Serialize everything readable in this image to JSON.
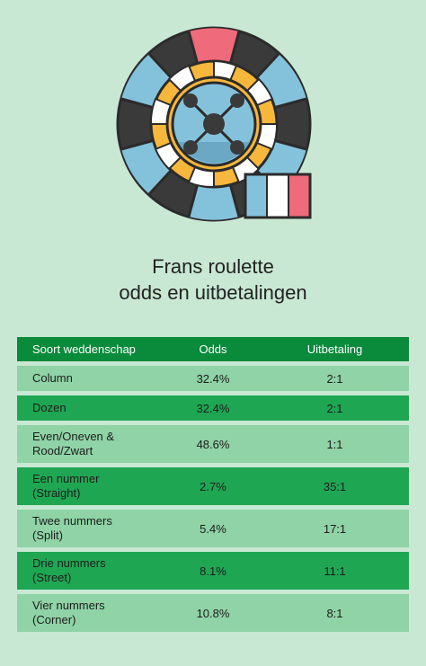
{
  "title": {
    "line1": "Frans roulette",
    "line2": "odds en uitbetalingen"
  },
  "colors": {
    "background": "#c8e8d3",
    "header": "#0a8a3b",
    "row_light": "#8fd3a6",
    "row_dark": "#1fa653",
    "wheel_dark": "#3a3a3a",
    "wheel_blue": "#84c2dc",
    "wheel_red": "#ef6a7a",
    "wheel_yellow": "#f6b73c"
  },
  "icons": {
    "wheel": "roulette-wheel-icon",
    "flag": "french-flag-icon"
  },
  "table": {
    "headers": [
      "Soort weddenschap",
      "Odds",
      "Uitbetaling"
    ],
    "rows": [
      {
        "bet": "Column",
        "bet2": "",
        "odds": "32.4%",
        "payout": "2:1"
      },
      {
        "bet": "Dozen",
        "bet2": "",
        "odds": "32.4%",
        "payout": "2:1"
      },
      {
        "bet": "Even/Oneven &",
        "bet2": "Rood/Zwart",
        "odds": "48.6%",
        "payout": "1:1"
      },
      {
        "bet": "Een nummer",
        "bet2": "(Straight)",
        "odds": "2.7%",
        "payout": "35:1"
      },
      {
        "bet": "Twee nummers",
        "bet2": "(Split)",
        "odds": "5.4%",
        "payout": "17:1"
      },
      {
        "bet": "Drie nummers",
        "bet2": "(Street)",
        "odds": "8.1%",
        "payout": "11:1"
      },
      {
        "bet": "Vier nummers",
        "bet2": "(Corner)",
        "odds": "10.8%",
        "payout": "8:1"
      }
    ]
  }
}
